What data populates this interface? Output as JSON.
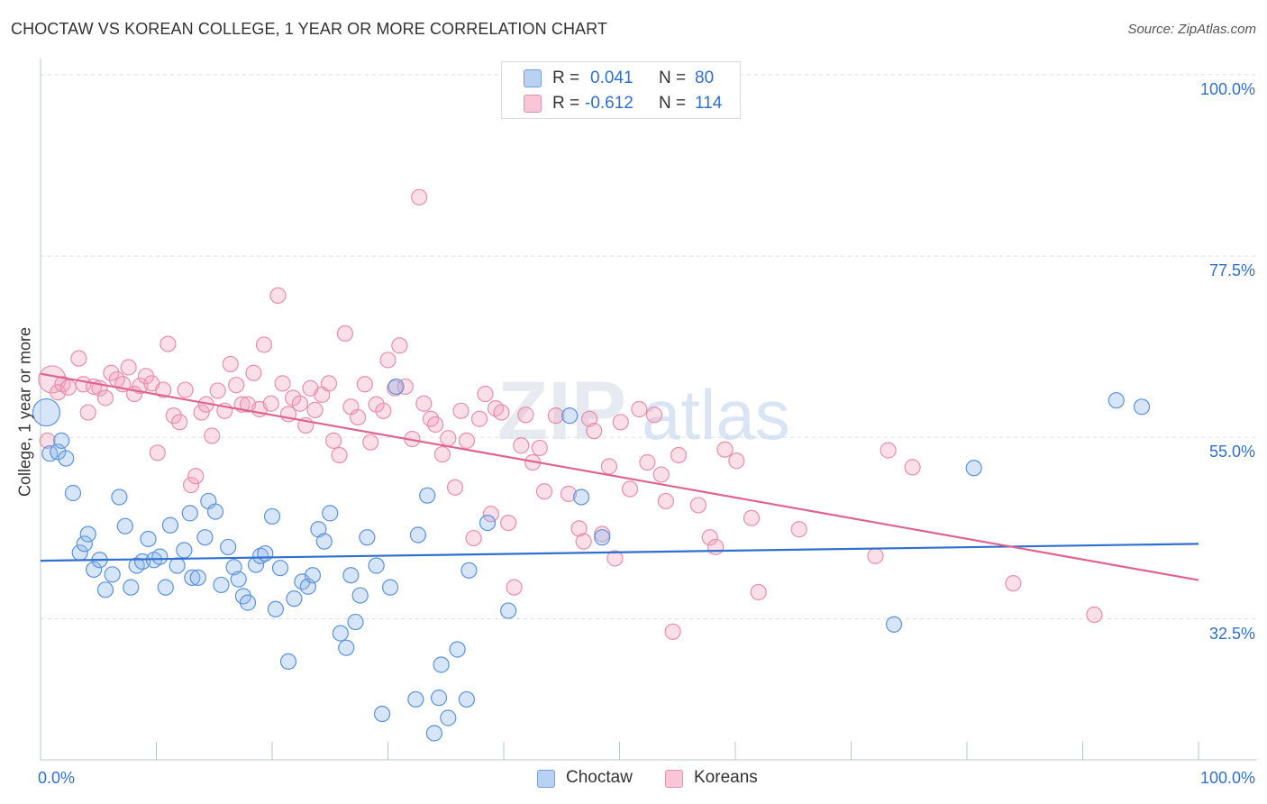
{
  "title": "CHOCTAW VS KOREAN COLLEGE, 1 YEAR OR MORE CORRELATION CHART",
  "source": "Source: ZipAtlas.com",
  "watermark": {
    "zip": "ZIP",
    "atlas": "atlas"
  },
  "colors": {
    "choctaw": "#5b93dd",
    "koreans": "#e8779b",
    "choctaw_line": "#2f6fd0",
    "koreans_line": "#e0638f",
    "tick_text": "#2f6fd0"
  },
  "legend": {
    "choctaw": {
      "r_label": "R =",
      "r_value": "0.041",
      "n_label": "N =",
      "n_value": "80"
    },
    "koreans": {
      "r_label": "R =",
      "r_value": "-0.612",
      "n_label": "N =",
      "n_value": "114"
    }
  },
  "bottom_legend": {
    "choctaw": "Choctaw",
    "koreans": "Koreans"
  },
  "chart_data": {
    "type": "scatter",
    "title": "CHOCTAW VS KOREAN COLLEGE, 1 YEAR OR MORE CORRELATION CHART",
    "xlabel": "",
    "ylabel": "College, 1 year or more",
    "xlim": [
      0,
      100
    ],
    "ylim": [
      15,
      102
    ],
    "x_tick_labels": [
      "0.0%",
      "100.0%"
    ],
    "y_ticks": [
      32.5,
      55.0,
      77.5,
      100.0
    ],
    "y_tick_labels": [
      "32.5%",
      "55.0%",
      "77.5%",
      "100.0%"
    ],
    "grid": true,
    "legend_position": "top-center",
    "series": [
      {
        "name": "Choctaw",
        "r": 0.041,
        "n": 80,
        "trend": {
          "x": [
            0,
            100
          ],
          "y": [
            39.7,
            41.8
          ]
        },
        "points": [
          [
            0.5,
            58.1
          ],
          [
            0.8,
            53.0
          ],
          [
            1.5,
            53.2
          ],
          [
            1.8,
            54.6
          ],
          [
            2.2,
            52.4
          ],
          [
            2.8,
            48.1
          ],
          [
            3.4,
            40.7
          ],
          [
            3.8,
            41.8
          ],
          [
            4.1,
            43.0
          ],
          [
            4.6,
            38.6
          ],
          [
            5.1,
            39.8
          ],
          [
            5.6,
            36.1
          ],
          [
            6.2,
            38.0
          ],
          [
            6.8,
            47.6
          ],
          [
            7.3,
            44.0
          ],
          [
            7.8,
            36.4
          ],
          [
            8.3,
            39.1
          ],
          [
            8.8,
            39.6
          ],
          [
            9.3,
            42.4
          ],
          [
            9.8,
            39.8
          ],
          [
            10.3,
            40.2
          ],
          [
            10.8,
            36.4
          ],
          [
            11.2,
            44.1
          ],
          [
            11.8,
            39.1
          ],
          [
            12.4,
            41.0
          ],
          [
            12.9,
            45.6
          ],
          [
            13.1,
            37.6
          ],
          [
            13.6,
            37.6
          ],
          [
            14.2,
            42.6
          ],
          [
            14.5,
            47.1
          ],
          [
            15.1,
            45.8
          ],
          [
            15.6,
            36.7
          ],
          [
            16.2,
            41.4
          ],
          [
            16.7,
            38.9
          ],
          [
            17.1,
            37.4
          ],
          [
            17.5,
            35.3
          ],
          [
            17.9,
            34.5
          ],
          [
            18.6,
            39.2
          ],
          [
            19.0,
            40.3
          ],
          [
            19.4,
            40.6
          ],
          [
            20.0,
            45.2
          ],
          [
            20.3,
            33.7
          ],
          [
            20.7,
            38.8
          ],
          [
            21.4,
            27.2
          ],
          [
            21.9,
            35.0
          ],
          [
            22.6,
            37.1
          ],
          [
            23.1,
            36.5
          ],
          [
            23.5,
            37.9
          ],
          [
            24.0,
            43.6
          ],
          [
            24.5,
            42.1
          ],
          [
            25.0,
            45.6
          ],
          [
            25.9,
            30.7
          ],
          [
            26.4,
            28.9
          ],
          [
            26.8,
            37.9
          ],
          [
            27.2,
            32.1
          ],
          [
            27.6,
            35.4
          ],
          [
            28.2,
            42.6
          ],
          [
            29.0,
            39.1
          ],
          [
            29.5,
            20.7
          ],
          [
            30.2,
            36.4
          ],
          [
            30.7,
            61.3
          ],
          [
            32.4,
            22.5
          ],
          [
            32.6,
            42.9
          ],
          [
            33.4,
            47.8
          ],
          [
            34.0,
            18.3
          ],
          [
            34.4,
            22.7
          ],
          [
            34.6,
            26.8
          ],
          [
            35.2,
            20.2
          ],
          [
            36.0,
            28.7
          ],
          [
            36.8,
            22.5
          ],
          [
            37.0,
            38.5
          ],
          [
            38.6,
            44.4
          ],
          [
            40.4,
            33.5
          ],
          [
            45.7,
            57.7
          ],
          [
            46.7,
            47.6
          ],
          [
            48.5,
            42.6
          ],
          [
            73.7,
            31.8
          ],
          [
            80.6,
            51.2
          ],
          [
            92.9,
            59.6
          ],
          [
            95.1,
            58.8
          ]
        ]
      },
      {
        "name": "Koreans",
        "r": -0.612,
        "n": 114,
        "trend": {
          "x": [
            0,
            100
          ],
          "y": [
            62.9,
            37.3
          ]
        },
        "points": [
          [
            0.6,
            54.6
          ],
          [
            1.0,
            62.2
          ],
          [
            1.5,
            60.6
          ],
          [
            1.9,
            61.6
          ],
          [
            2.4,
            61.2
          ],
          [
            3.3,
            64.8
          ],
          [
            3.7,
            61.6
          ],
          [
            4.1,
            58.1
          ],
          [
            4.6,
            61.3
          ],
          [
            5.1,
            61.1
          ],
          [
            5.6,
            59.9
          ],
          [
            6.1,
            63.0
          ],
          [
            6.6,
            62.2
          ],
          [
            7.1,
            61.6
          ],
          [
            7.6,
            63.7
          ],
          [
            8.1,
            60.4
          ],
          [
            8.6,
            61.4
          ],
          [
            9.1,
            62.6
          ],
          [
            9.6,
            61.7
          ],
          [
            10.1,
            53.1
          ],
          [
            10.6,
            60.9
          ],
          [
            11.0,
            66.6
          ],
          [
            11.5,
            57.7
          ],
          [
            12.0,
            56.9
          ],
          [
            12.5,
            60.9
          ],
          [
            13.0,
            49.1
          ],
          [
            13.4,
            50.2
          ],
          [
            13.9,
            58.1
          ],
          [
            14.3,
            59.1
          ],
          [
            14.8,
            55.2
          ],
          [
            15.3,
            60.8
          ],
          [
            15.9,
            58.3
          ],
          [
            16.4,
            64.1
          ],
          [
            16.9,
            61.5
          ],
          [
            17.4,
            59.1
          ],
          [
            17.9,
            59.1
          ],
          [
            18.4,
            63.0
          ],
          [
            18.9,
            58.5
          ],
          [
            19.3,
            66.5
          ],
          [
            19.9,
            59.2
          ],
          [
            20.5,
            72.6
          ],
          [
            20.9,
            61.7
          ],
          [
            21.4,
            57.9
          ],
          [
            21.8,
            59.9
          ],
          [
            22.4,
            59.2
          ],
          [
            22.9,
            56.5
          ],
          [
            23.3,
            61.1
          ],
          [
            23.7,
            58.4
          ],
          [
            24.3,
            60.3
          ],
          [
            24.9,
            61.7
          ],
          [
            25.3,
            54.6
          ],
          [
            25.8,
            52.8
          ],
          [
            26.3,
            67.9
          ],
          [
            26.8,
            58.8
          ],
          [
            27.4,
            57.5
          ],
          [
            28.0,
            61.6
          ],
          [
            28.5,
            54.4
          ],
          [
            29.0,
            59.1
          ],
          [
            29.6,
            58.3
          ],
          [
            30.0,
            64.6
          ],
          [
            30.6,
            61.1
          ],
          [
            31.0,
            66.4
          ],
          [
            31.5,
            61.3
          ],
          [
            32.1,
            54.8
          ],
          [
            32.7,
            84.8
          ],
          [
            33.1,
            59.2
          ],
          [
            33.7,
            57.3
          ],
          [
            34.1,
            56.6
          ],
          [
            34.7,
            52.9
          ],
          [
            35.2,
            54.9
          ],
          [
            35.8,
            48.8
          ],
          [
            36.3,
            58.3
          ],
          [
            36.8,
            54.6
          ],
          [
            37.4,
            42.5
          ],
          [
            37.9,
            57.3
          ],
          [
            38.4,
            60.4
          ],
          [
            38.9,
            45.5
          ],
          [
            39.3,
            58.6
          ],
          [
            39.8,
            58.1
          ],
          [
            40.4,
            44.4
          ],
          [
            40.9,
            36.4
          ],
          [
            41.5,
            54.0
          ],
          [
            41.9,
            57.8
          ],
          [
            42.5,
            51.9
          ],
          [
            43.1,
            53.7
          ],
          [
            43.5,
            48.3
          ],
          [
            44.5,
            57.7
          ],
          [
            45.6,
            48.0
          ],
          [
            46.5,
            43.7
          ],
          [
            46.9,
            42.1
          ],
          [
            47.4,
            57.3
          ],
          [
            47.8,
            55.8
          ],
          [
            48.5,
            43.0
          ],
          [
            49.1,
            51.4
          ],
          [
            49.6,
            40.0
          ],
          [
            50.1,
            56.9
          ],
          [
            50.9,
            48.6
          ],
          [
            51.7,
            58.5
          ],
          [
            52.4,
            51.9
          ],
          [
            53.0,
            57.8
          ],
          [
            53.6,
            50.4
          ],
          [
            54.0,
            47.1
          ],
          [
            54.6,
            30.9
          ],
          [
            55.1,
            52.8
          ],
          [
            56.8,
            46.6
          ],
          [
            57.8,
            42.6
          ],
          [
            58.3,
            41.4
          ],
          [
            59.1,
            53.5
          ],
          [
            60.1,
            52.1
          ],
          [
            61.4,
            45.0
          ],
          [
            62.0,
            35.8
          ],
          [
            65.5,
            43.6
          ],
          [
            72.1,
            40.3
          ],
          [
            73.2,
            53.4
          ],
          [
            75.3,
            51.3
          ],
          [
            84.0,
            36.9
          ],
          [
            91.0,
            33.0
          ]
        ]
      }
    ]
  }
}
